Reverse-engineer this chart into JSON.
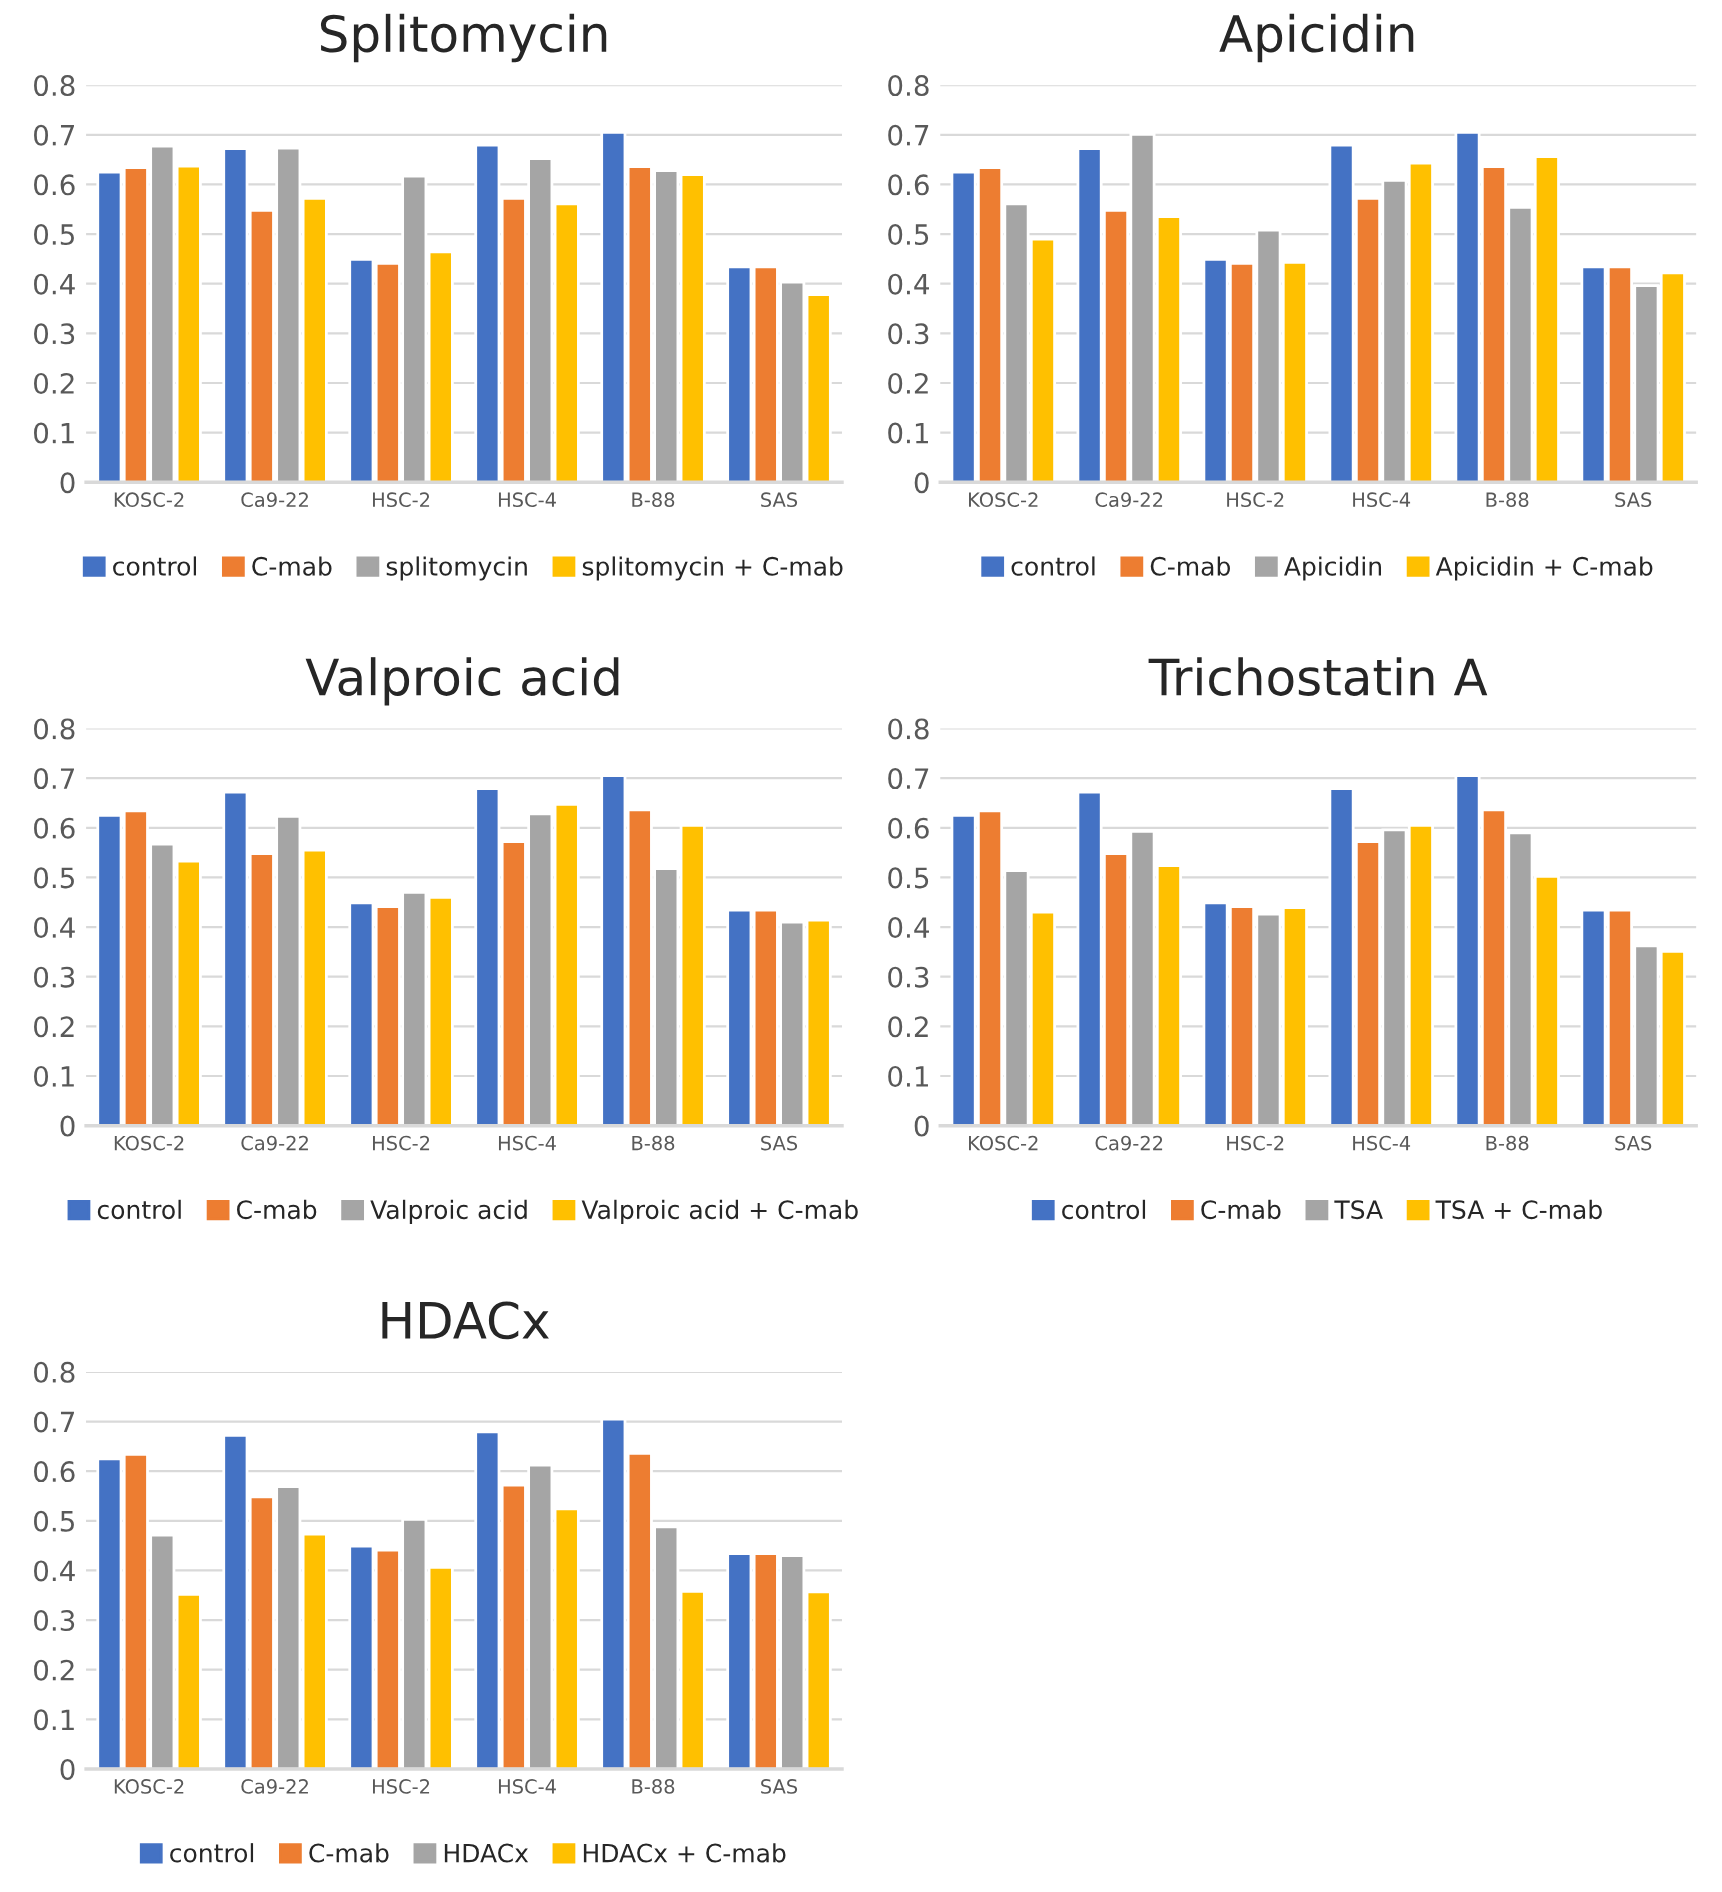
{
  "chart_data": [
    {
      "type": "bar",
      "title": "Splitomycin",
      "categories": [
        "KOSC-2",
        "Ca9-22",
        "HSC-2",
        "HSC-4",
        "B-88",
        "SAS"
      ],
      "ylim": [
        0,
        0.8
      ],
      "yticks": [
        0,
        0.1,
        0.2,
        0.3,
        0.4,
        0.5,
        0.6,
        0.7,
        0.8
      ],
      "grid": "y",
      "legend": "bottom",
      "series": [
        {
          "name": "control",
          "color": "#4472c4",
          "values": [
            0.625,
            0.672,
            0.449,
            0.679,
            0.705,
            0.434
          ]
        },
        {
          "name": "C-mab",
          "color": "#ed7d31",
          "values": [
            0.634,
            0.548,
            0.441,
            0.572,
            0.636,
            0.434
          ]
        },
        {
          "name": "splitomycin",
          "color": "#a5a5a5",
          "values": [
            0.677,
            0.673,
            0.617,
            0.652,
            0.628,
            0.403
          ]
        },
        {
          "name": "splitomycin + C-mab",
          "color": "#ffc000",
          "values": [
            0.637,
            0.572,
            0.464,
            0.561,
            0.62,
            0.378
          ]
        }
      ]
    },
    {
      "type": "bar",
      "title": "Apicidin",
      "categories": [
        "KOSC-2",
        "Ca9-22",
        "HSC-2",
        "HSC-4",
        "B-88",
        "SAS"
      ],
      "ylim": [
        0,
        0.8
      ],
      "yticks": [
        0,
        0.1,
        0.2,
        0.3,
        0.4,
        0.5,
        0.6,
        0.7,
        0.8
      ],
      "grid": "y",
      "legend": "bottom",
      "series": [
        {
          "name": "control",
          "color": "#4472c4",
          "values": [
            0.625,
            0.672,
            0.449,
            0.679,
            0.705,
            0.434
          ]
        },
        {
          "name": "C-mab",
          "color": "#ed7d31",
          "values": [
            0.634,
            0.548,
            0.441,
            0.572,
            0.636,
            0.434
          ]
        },
        {
          "name": "Apicidin",
          "color": "#a5a5a5",
          "values": [
            0.561,
            0.701,
            0.508,
            0.608,
            0.554,
            0.396
          ]
        },
        {
          "name": "Apicidin + C-mab",
          "color": "#ffc000",
          "values": [
            0.49,
            0.535,
            0.443,
            0.643,
            0.656,
            0.422
          ]
        }
      ]
    },
    {
      "type": "bar",
      "title": "Valproic acid",
      "categories": [
        "KOSC-2",
        "Ca9-22",
        "HSC-2",
        "HSC-4",
        "B-88",
        "SAS"
      ],
      "ylim": [
        0,
        0.8
      ],
      "yticks": [
        0,
        0.1,
        0.2,
        0.3,
        0.4,
        0.5,
        0.6,
        0.7,
        0.8
      ],
      "grid": "y",
      "legend": "bottom",
      "series": [
        {
          "name": "control",
          "color": "#4472c4",
          "values": [
            0.625,
            0.672,
            0.449,
            0.679,
            0.705,
            0.434
          ]
        },
        {
          "name": "C-mab",
          "color": "#ed7d31",
          "values": [
            0.634,
            0.548,
            0.441,
            0.572,
            0.636,
            0.434
          ]
        },
        {
          "name": "Valproic acid",
          "color": "#a5a5a5",
          "values": [
            0.567,
            0.623,
            0.47,
            0.628,
            0.518,
            0.41
          ]
        },
        {
          "name": "Valproic acid + C-mab",
          "color": "#ffc000",
          "values": [
            0.533,
            0.555,
            0.46,
            0.647,
            0.605,
            0.414
          ]
        }
      ]
    },
    {
      "type": "bar",
      "title": "Trichostatin A",
      "categories": [
        "KOSC-2",
        "Ca9-22",
        "HSC-2",
        "HSC-4",
        "B-88",
        "SAS"
      ],
      "ylim": [
        0,
        0.8
      ],
      "yticks": [
        0,
        0.1,
        0.2,
        0.3,
        0.4,
        0.5,
        0.6,
        0.7,
        0.8
      ],
      "grid": "y",
      "legend": "bottom",
      "series": [
        {
          "name": "control",
          "color": "#4472c4",
          "values": [
            0.625,
            0.672,
            0.449,
            0.679,
            0.705,
            0.434
          ]
        },
        {
          "name": "C-mab",
          "color": "#ed7d31",
          "values": [
            0.634,
            0.548,
            0.441,
            0.572,
            0.636,
            0.434
          ]
        },
        {
          "name": "TSA",
          "color": "#a5a5a5",
          "values": [
            0.514,
            0.593,
            0.426,
            0.596,
            0.59,
            0.362
          ]
        },
        {
          "name": "TSA + C-mab",
          "color": "#ffc000",
          "values": [
            0.43,
            0.524,
            0.439,
            0.605,
            0.502,
            0.351
          ]
        }
      ]
    },
    {
      "type": "bar",
      "title": "HDACx",
      "categories": [
        "KOSC-2",
        "Ca9-22",
        "HSC-2",
        "HSC-4",
        "B-88",
        "SAS"
      ],
      "ylim": [
        0,
        0.8
      ],
      "yticks": [
        0,
        0.1,
        0.2,
        0.3,
        0.4,
        0.5,
        0.6,
        0.7,
        0.8
      ],
      "grid": "y",
      "legend": "bottom",
      "series": [
        {
          "name": "control",
          "color": "#4472c4",
          "values": [
            0.625,
            0.672,
            0.449,
            0.679,
            0.705,
            0.434
          ]
        },
        {
          "name": "C-mab",
          "color": "#ed7d31",
          "values": [
            0.634,
            0.548,
            0.441,
            0.572,
            0.636,
            0.434
          ]
        },
        {
          "name": "HDACx",
          "color": "#a5a5a5",
          "values": [
            0.471,
            0.569,
            0.503,
            0.612,
            0.488,
            0.43
          ]
        },
        {
          "name": "HDACx + C-mab",
          "color": "#ffc000",
          "values": [
            0.352,
            0.473,
            0.406,
            0.524,
            0.358,
            0.357
          ]
        }
      ]
    }
  ]
}
